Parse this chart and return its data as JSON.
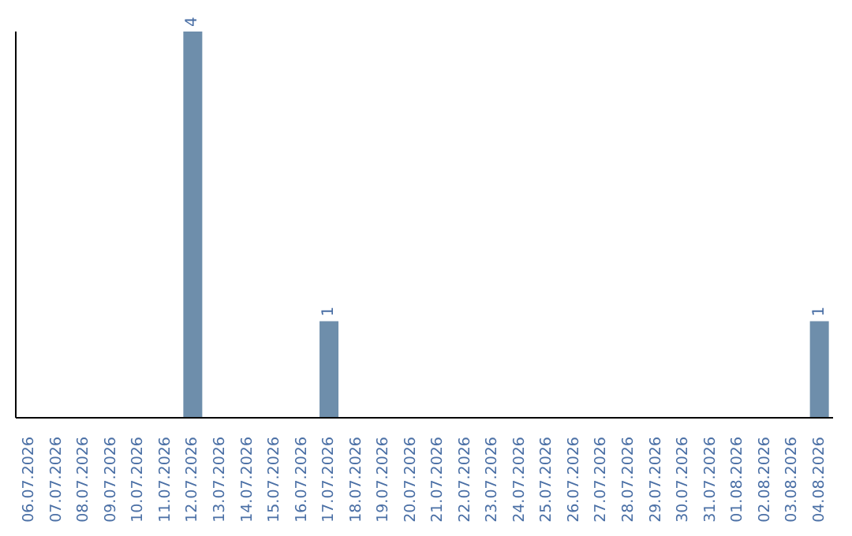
{
  "chart_data": {
    "type": "bar",
    "categories": [
      "06.07.2026",
      "07.07.2026",
      "08.07.2026",
      "09.07.2026",
      "10.07.2026",
      "11.07.2026",
      "12.07.2026",
      "13.07.2026",
      "14.07.2026",
      "15.07.2026",
      "16.07.2026",
      "17.07.2026",
      "18.07.2026",
      "19.07.2026",
      "20.07.2026",
      "21.07.2026",
      "22.07.2026",
      "23.07.2026",
      "24.07.2026",
      "25.07.2026",
      "26.07.2026",
      "27.07.2026",
      "28.07.2026",
      "29.07.2026",
      "30.07.2026",
      "31.07.2026",
      "01.08.2026",
      "02.08.2026",
      "03.08.2026",
      "04.08.2026"
    ],
    "values": [
      0,
      0,
      0,
      0,
      0,
      0,
      4,
      0,
      0,
      0,
      0,
      1,
      0,
      0,
      0,
      0,
      0,
      0,
      0,
      0,
      0,
      0,
      0,
      0,
      0,
      0,
      0,
      0,
      0,
      1
    ],
    "value_labels": [
      null,
      null,
      null,
      null,
      null,
      null,
      "4",
      null,
      null,
      null,
      null,
      "1",
      null,
      null,
      null,
      null,
      null,
      null,
      null,
      null,
      null,
      null,
      null,
      null,
      null,
      null,
      null,
      null,
      null,
      "1"
    ],
    "color": "#6e8eab",
    "ylim": [
      0,
      4
    ],
    "tick_labels": "x"
  }
}
